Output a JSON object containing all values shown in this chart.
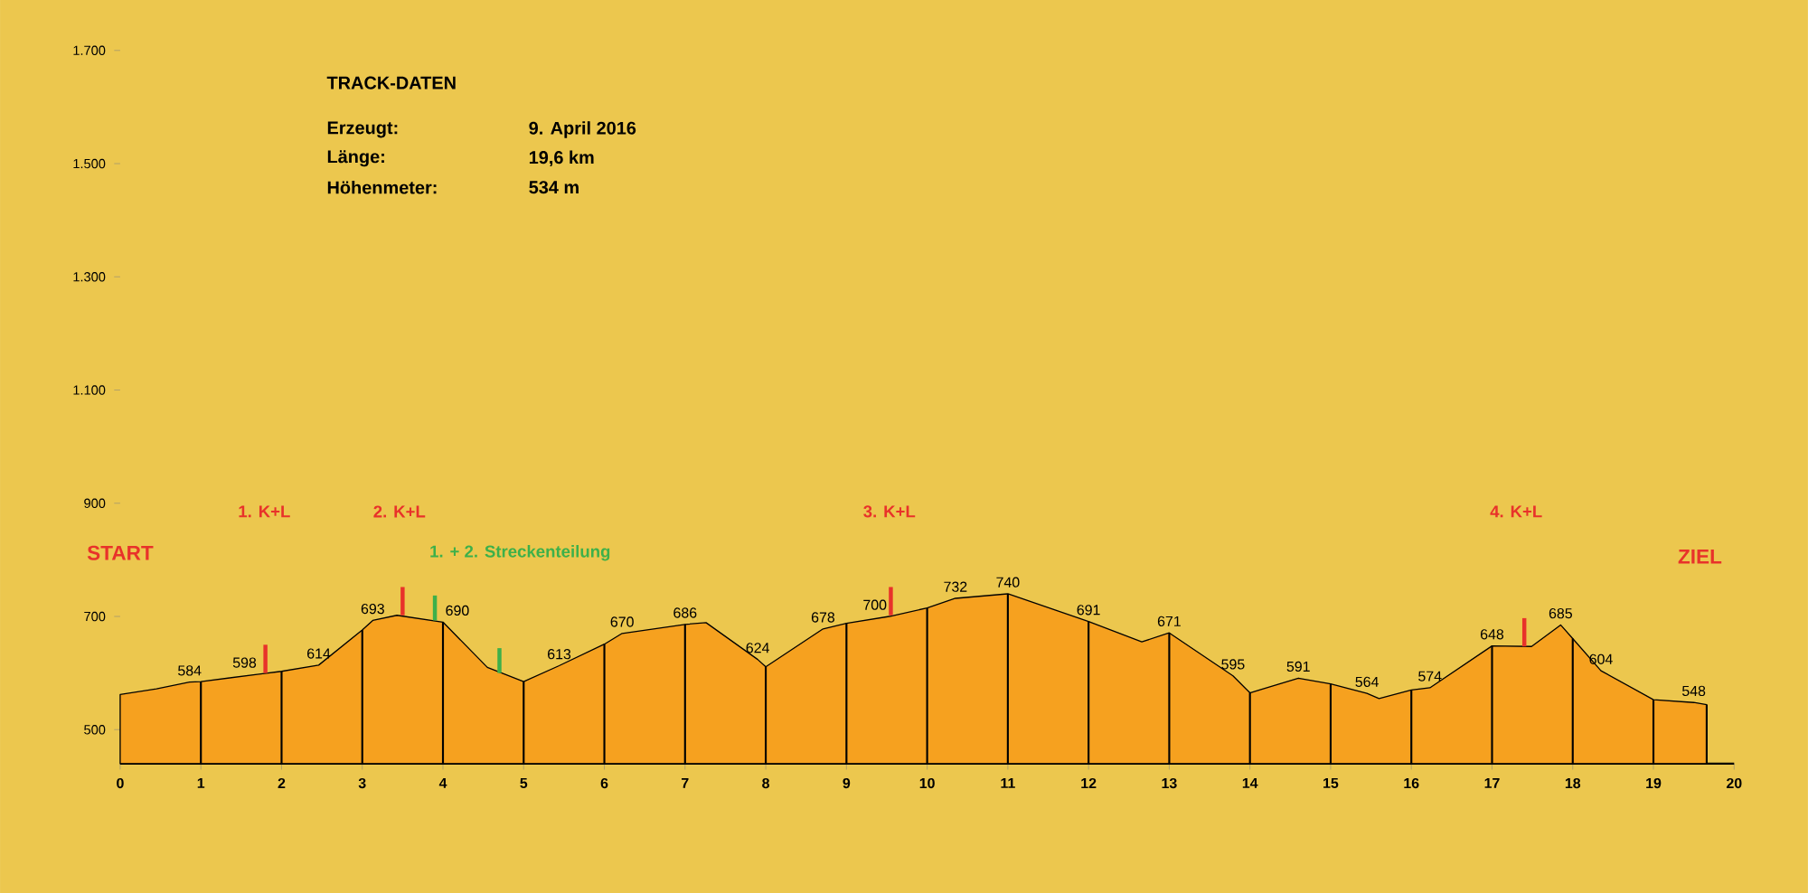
{
  "chart_data": {
    "type": "area",
    "title": "TRACK-DATEN",
    "annotations": [
      "Erzeugt:",
      "9. April 2016",
      "Länge:",
      "19,6 km",
      "Höhenmeter:",
      "534 m",
      "START",
      "ZIEL",
      "1. K+L",
      "2. K+L",
      "3. K+L",
      "4. K+L",
      "1. + 2. Streckenteilung"
    ],
    "series": [
      {
        "color": "#f6a11f",
        "x": [
          0,
          0.45,
          0.86,
          1,
          1.72,
          2,
          2.46,
          3,
          3.13,
          3.43,
          4,
          4.55,
          5,
          5.44,
          6,
          6.22,
          7,
          7.26,
          7.9,
          8,
          8.71,
          9,
          9.53,
          10,
          10.35,
          11,
          12,
          12.66,
          13,
          13.79,
          14,
          14.6,
          15,
          15.45,
          15.6,
          16,
          16.23,
          17,
          17.49,
          17.85,
          18,
          18.35,
          19,
          19.5,
          19.66
        ],
        "values": [
          562,
          572,
          584,
          585,
          598,
          603,
          614,
          676,
          693,
          702,
          690,
          610,
          585,
          613,
          651,
          670,
          686,
          689,
          624,
          611,
          678,
          688,
          700,
          715,
          732,
          740,
          691,
          655,
          671,
          595,
          565,
          591,
          581,
          564,
          555,
          570,
          574,
          648,
          647,
          685,
          661,
          604,
          553,
          548,
          544
        ],
        "value_labels": [
          null,
          null,
          "584",
          null,
          "598",
          null,
          "614",
          null,
          "693",
          null,
          "690",
          null,
          null,
          "613",
          null,
          "670",
          "686",
          null,
          "624",
          null,
          "678",
          null,
          "700",
          null,
          "732",
          "740",
          "691",
          null,
          "671",
          "595",
          null,
          "591",
          null,
          "564",
          null,
          null,
          "574",
          "648",
          null,
          "685",
          null,
          "604",
          null,
          "548",
          null
        ]
      },
      {
        "type": "bar",
        "color": "#000000",
        "x": [
          1,
          2,
          3,
          4,
          5,
          6,
          7,
          8,
          9,
          10,
          11,
          12,
          13,
          14,
          15,
          16,
          17,
          18,
          19,
          19.66
        ],
        "values": [
          585,
          603,
          676,
          690,
          585,
          651,
          686,
          611,
          688,
          715,
          740,
          691,
          671,
          565,
          581,
          570,
          648,
          661,
          553,
          544
        ]
      },
      {
        "type": "bar",
        "color": "#e8322a",
        "x": [
          1.8,
          3.5,
          9.55,
          17.4
        ],
        "base": [
          600,
          702,
          702,
          647
        ],
        "values": [
          50,
          50,
          50,
          50
        ]
      },
      {
        "type": "bar",
        "color": "#3db04a",
        "x": [
          3.9,
          4.7
        ],
        "base": [
          693,
          600
        ],
        "values": [
          44,
          44
        ]
      }
    ],
    "xlim": [
      0,
      20
    ],
    "ylim": [
      440,
      1700
    ],
    "xticks": [
      0,
      1,
      2,
      3,
      4,
      5,
      6,
      7,
      8,
      9,
      10,
      11,
      12,
      13,
      14,
      15,
      16,
      17,
      18,
      19,
      20
    ],
    "yticks": [
      500,
      700,
      900,
      {
        "value": 1100,
        "label": "1.100"
      },
      {
        "value": 1300,
        "label": "1.300"
      },
      {
        "value": 1500,
        "label": "1.500"
      },
      {
        "value": 1700,
        "label": "1.700"
      }
    ]
  }
}
